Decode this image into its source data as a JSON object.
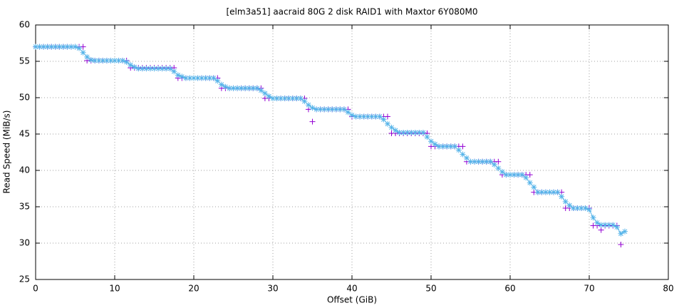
{
  "chart_data": {
    "type": "scatter",
    "title": "[elm3a51] aacraid 80G 2 disk RAID1 with Maxtor 6Y080M0",
    "x_label": "Offset (GiB)",
    "y_label": "Read Speed (MiB/s)",
    "xlim": [
      0,
      80
    ],
    "xticks": [
      0,
      10,
      20,
      30,
      40,
      50,
      60,
      70,
      80
    ],
    "ylim": [
      25,
      60
    ],
    "yticks": [
      25,
      30,
      35,
      40,
      45,
      50,
      55,
      60
    ],
    "grid": true,
    "x": [
      0,
      0.5,
      1,
      1.5,
      2,
      2.5,
      3,
      3.5,
      4,
      4.5,
      5,
      5.5,
      6,
      6.5,
      7,
      7.5,
      8,
      8.5,
      9,
      9.5,
      10,
      10.5,
      11,
      11.5,
      12,
      12.5,
      13,
      13.5,
      14,
      14.5,
      15,
      15.5,
      16,
      16.5,
      17,
      17.5,
      18,
      18.5,
      19,
      19.5,
      20,
      20.5,
      21,
      21.5,
      22,
      22.5,
      23,
      23.5,
      24,
      24.5,
      25,
      25.5,
      26,
      26.5,
      27,
      27.5,
      28,
      28.5,
      29,
      29.5,
      30,
      30.5,
      31,
      31.5,
      32,
      32.5,
      33,
      33.5,
      34,
      34.5,
      35,
      35.5,
      36,
      36.5,
      37,
      37.5,
      38,
      38.5,
      39,
      39.5,
      40,
      40.5,
      41,
      41.5,
      42,
      42.5,
      43,
      43.5,
      44,
      44.5,
      45,
      45.5,
      46,
      46.5,
      47,
      47.5,
      48,
      48.5,
      49,
      49.5,
      50,
      50.5,
      51,
      51.5,
      52,
      52.5,
      53,
      53.5,
      54,
      54.5,
      55,
      55.5,
      56,
      56.5,
      57,
      57.5,
      58,
      58.5,
      59,
      59.5,
      60,
      60.5,
      61,
      61.5,
      62,
      62.5,
      63,
      63.5,
      64,
      64.5,
      65,
      65.5,
      66,
      66.5,
      67,
      67.5,
      68,
      68.5,
      69,
      69.5,
      70,
      70.5,
      71,
      71.5,
      72,
      72.5,
      73,
      73.5,
      74,
      74.5
    ],
    "series": [
      {
        "color": "#9400d3",
        "marker": "plus",
        "lines": false,
        "values": [
          57,
          57,
          57,
          57,
          57,
          57,
          57,
          57,
          57,
          57,
          57,
          57,
          57,
          55.1,
          55.1,
          55.1,
          55.1,
          55.1,
          55.1,
          55.1,
          55.1,
          55.1,
          55.1,
          55.1,
          54.1,
          54.1,
          54.1,
          54.1,
          54.1,
          54.1,
          54.1,
          54.1,
          54.1,
          54.1,
          54.1,
          54.1,
          52.7,
          52.7,
          52.7,
          52.7,
          52.7,
          52.7,
          52.7,
          52.7,
          52.7,
          52.7,
          52.7,
          51.3,
          51.3,
          51.3,
          51.3,
          51.3,
          51.3,
          51.3,
          51.3,
          51.3,
          51.3,
          51.3,
          49.9,
          49.9,
          49.9,
          49.9,
          49.9,
          49.9,
          49.9,
          49.9,
          49.9,
          49.9,
          49.9,
          48.4,
          46.7,
          48.4,
          48.4,
          48.4,
          48.4,
          48.4,
          48.4,
          48.4,
          48.4,
          48.4,
          47.4,
          47.4,
          47.4,
          47.4,
          47.4,
          47.4,
          47.4,
          47.4,
          47.4,
          47.4,
          45.1,
          45.1,
          45.1,
          45.1,
          45.1,
          45.1,
          45.1,
          45.1,
          45.1,
          45.1,
          43.3,
          43.3,
          43.3,
          43.3,
          43.3,
          43.3,
          43.3,
          43.3,
          43.3,
          41.2,
          41.2,
          41.2,
          41.2,
          41.2,
          41.2,
          41.2,
          41.2,
          41.2,
          39.4,
          39.4,
          39.4,
          39.4,
          39.4,
          39.4,
          39.4,
          39.4,
          37,
          37,
          37,
          37,
          37,
          37,
          37,
          37,
          34.8,
          34.8,
          34.8,
          34.8,
          34.8,
          34.8,
          34.8,
          32.4,
          32.4,
          31.8,
          32.4,
          32.4,
          32.4,
          32.4,
          29.8,
          null
        ]
      },
      {
        "color": "#56b4e9",
        "marker": "star",
        "lines": true,
        "values": [
          57,
          57,
          57,
          57,
          57,
          57,
          57,
          57,
          57,
          57,
          57,
          56.8,
          56.2,
          55.6,
          55.2,
          55.1,
          55.1,
          55.1,
          55.1,
          55.1,
          55.1,
          55.1,
          55.1,
          54.9,
          54.5,
          54.2,
          54,
          54,
          54,
          54,
          54,
          54,
          54,
          54,
          54,
          53.6,
          53.1,
          52.9,
          52.7,
          52.7,
          52.7,
          52.7,
          52.7,
          52.7,
          52.7,
          52.7,
          52.3,
          51.8,
          51.5,
          51.3,
          51.3,
          51.3,
          51.3,
          51.3,
          51.3,
          51.3,
          51.3,
          51,
          50.6,
          50.2,
          49.9,
          49.9,
          49.9,
          49.9,
          49.9,
          49.9,
          49.9,
          49.9,
          49.5,
          49,
          48.6,
          48.4,
          48.4,
          48.4,
          48.4,
          48.4,
          48.4,
          48.4,
          48.4,
          48,
          47.6,
          47.4,
          47.4,
          47.4,
          47.4,
          47.4,
          47.4,
          47.4,
          47,
          46.4,
          45.9,
          45.5,
          45.2,
          45.2,
          45.2,
          45.2,
          45.2,
          45.2,
          45.2,
          44.6,
          44,
          43.6,
          43.3,
          43.3,
          43.3,
          43.3,
          43.3,
          42.8,
          42.2,
          41.7,
          41.2,
          41.2,
          41.2,
          41.2,
          41.2,
          41.2,
          40.8,
          40.3,
          39.8,
          39.4,
          39.4,
          39.4,
          39.4,
          39.4,
          39,
          38.3,
          37.7,
          37,
          37,
          37,
          37,
          37,
          37,
          36.4,
          35.7,
          35.2,
          34.8,
          34.8,
          34.8,
          34.8,
          34.6,
          33.5,
          32.8,
          32.5,
          32.5,
          32.5,
          32.5,
          32.2,
          31.3,
          31.6
        ]
      }
    ]
  }
}
